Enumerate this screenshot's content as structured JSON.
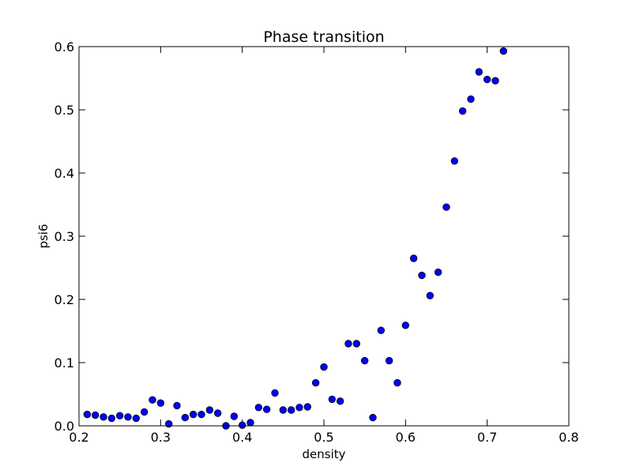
{
  "chart_data": {
    "type": "scatter",
    "title": "Phase transition",
    "xlabel": "density",
    "ylabel": "psi6",
    "xlim": [
      0.2,
      0.8
    ],
    "ylim": [
      0.0,
      0.6
    ],
    "xticks": [
      "0.2",
      "0.3",
      "0.4",
      "0.5",
      "0.6",
      "0.7",
      "0.8"
    ],
    "yticks": [
      "0.0",
      "0.1",
      "0.2",
      "0.3",
      "0.4",
      "0.5",
      "0.6"
    ],
    "grid": false,
    "marker_color": "#0000ff",
    "series": [
      {
        "points": [
          [
            0.21,
            0.018
          ],
          [
            0.22,
            0.017
          ],
          [
            0.23,
            0.014
          ],
          [
            0.24,
            0.012
          ],
          [
            0.25,
            0.016
          ],
          [
            0.26,
            0.014
          ],
          [
            0.27,
            0.012
          ],
          [
            0.28,
            0.022
          ],
          [
            0.29,
            0.041
          ],
          [
            0.3,
            0.036
          ],
          [
            0.31,
            0.003
          ],
          [
            0.32,
            0.032
          ],
          [
            0.33,
            0.013
          ],
          [
            0.34,
            0.018
          ],
          [
            0.35,
            0.018
          ],
          [
            0.36,
            0.025
          ],
          [
            0.37,
            0.02
          ],
          [
            0.38,
            0.0
          ],
          [
            0.39,
            0.015
          ],
          [
            0.4,
            0.001
          ],
          [
            0.41,
            0.005
          ],
          [
            0.42,
            0.029
          ],
          [
            0.43,
            0.026
          ],
          [
            0.44,
            0.052
          ],
          [
            0.45,
            0.025
          ],
          [
            0.46,
            0.025
          ],
          [
            0.47,
            0.029
          ],
          [
            0.48,
            0.03
          ],
          [
            0.49,
            0.068
          ],
          [
            0.5,
            0.093
          ],
          [
            0.51,
            0.042
          ],
          [
            0.52,
            0.039
          ],
          [
            0.53,
            0.13
          ],
          [
            0.54,
            0.13
          ],
          [
            0.55,
            0.103
          ],
          [
            0.56,
            0.013
          ],
          [
            0.57,
            0.151
          ],
          [
            0.58,
            0.103
          ],
          [
            0.59,
            0.068
          ],
          [
            0.6,
            0.159
          ],
          [
            0.61,
            0.265
          ],
          [
            0.62,
            0.238
          ],
          [
            0.63,
            0.206
          ],
          [
            0.64,
            0.243
          ],
          [
            0.65,
            0.346
          ],
          [
            0.66,
            0.419
          ],
          [
            0.67,
            0.498
          ],
          [
            0.68,
            0.517
          ],
          [
            0.69,
            0.56
          ],
          [
            0.7,
            0.548
          ],
          [
            0.71,
            0.546
          ],
          [
            0.72,
            0.593
          ]
        ]
      }
    ]
  }
}
